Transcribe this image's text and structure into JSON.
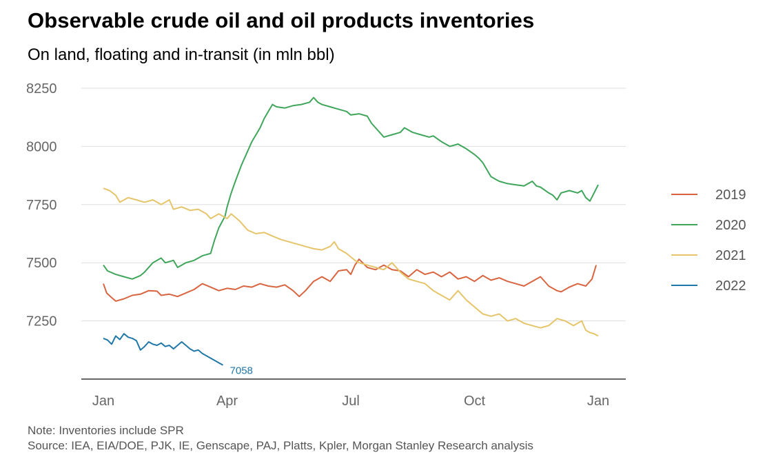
{
  "title": "Observable crude oil and oil products inventories",
  "subtitle": "On land, floating and in-transit (in mln bbl)",
  "notes": {
    "note": "Note: Inventories include SPR",
    "source": "Source: IEA, EIA/DOE, PJK, IE, Genscape, PAJ, Platts, Kpler, Morgan Stanley Research analysis"
  },
  "chart_data": {
    "type": "line",
    "xlabel": "",
    "ylabel": "",
    "x_unit": "month of year (Jan 1 = 0, following Jan 1 = 12)",
    "xlim": [
      0,
      12
    ],
    "ylim": [
      7000,
      8250
    ],
    "x_ticks": [
      {
        "label": "Jan",
        "value": 0
      },
      {
        "label": "Apr",
        "value": 3
      },
      {
        "label": "Jul",
        "value": 6
      },
      {
        "label": "Oct",
        "value": 9
      },
      {
        "label": "Jan",
        "value": 12
      }
    ],
    "y_ticks": [
      7250,
      7500,
      7750,
      8000,
      8250
    ],
    "grid": "horizontal",
    "legend_position": "right",
    "end_label": {
      "series": "2022",
      "text": "7058"
    },
    "series": [
      {
        "name": "2019",
        "color": "#d8643f",
        "points": [
          [
            0,
            7410
          ],
          [
            0.08,
            7370
          ],
          [
            0.2,
            7350
          ],
          [
            0.3,
            7335
          ],
          [
            0.5,
            7345
          ],
          [
            0.7,
            7360
          ],
          [
            0.9,
            7365
          ],
          [
            1.1,
            7380
          ],
          [
            1.3,
            7378
          ],
          [
            1.4,
            7360
          ],
          [
            1.6,
            7365
          ],
          [
            1.8,
            7355
          ],
          [
            2.0,
            7370
          ],
          [
            2.2,
            7385
          ],
          [
            2.4,
            7410
          ],
          [
            2.6,
            7395
          ],
          [
            2.8,
            7380
          ],
          [
            3.0,
            7390
          ],
          [
            3.2,
            7385
          ],
          [
            3.4,
            7400
          ],
          [
            3.6,
            7395
          ],
          [
            3.8,
            7410
          ],
          [
            4.0,
            7400
          ],
          [
            4.2,
            7395
          ],
          [
            4.4,
            7405
          ],
          [
            4.6,
            7380
          ],
          [
            4.75,
            7355
          ],
          [
            4.9,
            7380
          ],
          [
            5.1,
            7420
          ],
          [
            5.3,
            7440
          ],
          [
            5.5,
            7420
          ],
          [
            5.7,
            7465
          ],
          [
            5.9,
            7470
          ],
          [
            6.0,
            7450
          ],
          [
            6.1,
            7490
          ],
          [
            6.2,
            7515
          ],
          [
            6.4,
            7480
          ],
          [
            6.6,
            7470
          ],
          [
            6.8,
            7490
          ],
          [
            7.0,
            7470
          ],
          [
            7.2,
            7465
          ],
          [
            7.4,
            7440
          ],
          [
            7.6,
            7470
          ],
          [
            7.8,
            7450
          ],
          [
            8.0,
            7460
          ],
          [
            8.2,
            7440
          ],
          [
            8.4,
            7460
          ],
          [
            8.6,
            7430
          ],
          [
            8.8,
            7440
          ],
          [
            9.0,
            7420
          ],
          [
            9.2,
            7445
          ],
          [
            9.4,
            7425
          ],
          [
            9.6,
            7435
          ],
          [
            9.8,
            7420
          ],
          [
            10.0,
            7410
          ],
          [
            10.2,
            7400
          ],
          [
            10.4,
            7420
          ],
          [
            10.6,
            7440
          ],
          [
            10.8,
            7400
          ],
          [
            11.0,
            7380
          ],
          [
            11.1,
            7375
          ],
          [
            11.3,
            7395
          ],
          [
            11.5,
            7410
          ],
          [
            11.7,
            7400
          ],
          [
            11.85,
            7430
          ],
          [
            11.95,
            7490
          ]
        ]
      },
      {
        "name": "2020",
        "color": "#3fa55a",
        "points": [
          [
            0,
            7490
          ],
          [
            0.1,
            7465
          ],
          [
            0.3,
            7450
          ],
          [
            0.5,
            7440
          ],
          [
            0.7,
            7430
          ],
          [
            0.9,
            7445
          ],
          [
            1.0,
            7460
          ],
          [
            1.2,
            7500
          ],
          [
            1.4,
            7520
          ],
          [
            1.5,
            7500
          ],
          [
            1.7,
            7510
          ],
          [
            1.8,
            7480
          ],
          [
            2.0,
            7500
          ],
          [
            2.2,
            7510
          ],
          [
            2.4,
            7530
          ],
          [
            2.6,
            7540
          ],
          [
            2.7,
            7600
          ],
          [
            2.8,
            7650
          ],
          [
            2.95,
            7700
          ],
          [
            3.0,
            7740
          ],
          [
            3.1,
            7800
          ],
          [
            3.2,
            7850
          ],
          [
            3.35,
            7920
          ],
          [
            3.5,
            7980
          ],
          [
            3.6,
            8020
          ],
          [
            3.7,
            8050
          ],
          [
            3.8,
            8080
          ],
          [
            3.9,
            8120
          ],
          [
            4.0,
            8150
          ],
          [
            4.1,
            8180
          ],
          [
            4.2,
            8170
          ],
          [
            4.4,
            8165
          ],
          [
            4.6,
            8175
          ],
          [
            4.8,
            8180
          ],
          [
            5.0,
            8190
          ],
          [
            5.1,
            8210
          ],
          [
            5.2,
            8190
          ],
          [
            5.3,
            8180
          ],
          [
            5.5,
            8170
          ],
          [
            5.7,
            8160
          ],
          [
            5.9,
            8150
          ],
          [
            6.0,
            8135
          ],
          [
            6.2,
            8140
          ],
          [
            6.4,
            8130
          ],
          [
            6.5,
            8100
          ],
          [
            6.6,
            8080
          ],
          [
            6.7,
            8060
          ],
          [
            6.8,
            8040
          ],
          [
            7.0,
            8050
          ],
          [
            7.2,
            8060
          ],
          [
            7.3,
            8080
          ],
          [
            7.5,
            8060
          ],
          [
            7.7,
            8050
          ],
          [
            7.9,
            8040
          ],
          [
            8.0,
            8045
          ],
          [
            8.2,
            8020
          ],
          [
            8.4,
            8000
          ],
          [
            8.6,
            8010
          ],
          [
            8.8,
            7990
          ],
          [
            9.0,
            7965
          ],
          [
            9.1,
            7950
          ],
          [
            9.2,
            7930
          ],
          [
            9.3,
            7900
          ],
          [
            9.4,
            7870
          ],
          [
            9.5,
            7860
          ],
          [
            9.6,
            7850
          ],
          [
            9.8,
            7840
          ],
          [
            10.0,
            7835
          ],
          [
            10.2,
            7830
          ],
          [
            10.4,
            7850
          ],
          [
            10.5,
            7830
          ],
          [
            10.6,
            7825
          ],
          [
            10.8,
            7800
          ],
          [
            10.9,
            7790
          ],
          [
            11.0,
            7770
          ],
          [
            11.1,
            7800
          ],
          [
            11.3,
            7810
          ],
          [
            11.5,
            7800
          ],
          [
            11.6,
            7810
          ],
          [
            11.7,
            7780
          ],
          [
            11.8,
            7765
          ],
          [
            11.9,
            7800
          ],
          [
            12.0,
            7835
          ]
        ]
      },
      {
        "name": "2021",
        "color": "#e5c46a",
        "points": [
          [
            0,
            7820
          ],
          [
            0.15,
            7810
          ],
          [
            0.3,
            7790
          ],
          [
            0.4,
            7760
          ],
          [
            0.6,
            7780
          ],
          [
            0.8,
            7770
          ],
          [
            1.0,
            7760
          ],
          [
            1.2,
            7770
          ],
          [
            1.4,
            7750
          ],
          [
            1.6,
            7770
          ],
          [
            1.7,
            7730
          ],
          [
            1.9,
            7740
          ],
          [
            2.1,
            7725
          ],
          [
            2.3,
            7730
          ],
          [
            2.5,
            7710
          ],
          [
            2.6,
            7690
          ],
          [
            2.8,
            7710
          ],
          [
            3.0,
            7690
          ],
          [
            3.1,
            7710
          ],
          [
            3.3,
            7680
          ],
          [
            3.4,
            7660
          ],
          [
            3.5,
            7640
          ],
          [
            3.7,
            7625
          ],
          [
            3.9,
            7630
          ],
          [
            4.1,
            7615
          ],
          [
            4.3,
            7600
          ],
          [
            4.5,
            7590
          ],
          [
            4.7,
            7580
          ],
          [
            4.9,
            7570
          ],
          [
            5.1,
            7560
          ],
          [
            5.3,
            7555
          ],
          [
            5.5,
            7570
          ],
          [
            5.6,
            7590
          ],
          [
            5.7,
            7560
          ],
          [
            5.9,
            7540
          ],
          [
            6.0,
            7525
          ],
          [
            6.1,
            7510
          ],
          [
            6.2,
            7500
          ],
          [
            6.4,
            7490
          ],
          [
            6.6,
            7480
          ],
          [
            6.8,
            7470
          ],
          [
            7.0,
            7500
          ],
          [
            7.2,
            7460
          ],
          [
            7.4,
            7430
          ],
          [
            7.6,
            7420
          ],
          [
            7.8,
            7410
          ],
          [
            8.0,
            7380
          ],
          [
            8.2,
            7360
          ],
          [
            8.4,
            7340
          ],
          [
            8.6,
            7380
          ],
          [
            8.8,
            7340
          ],
          [
            9.0,
            7310
          ],
          [
            9.2,
            7280
          ],
          [
            9.4,
            7270
          ],
          [
            9.6,
            7280
          ],
          [
            9.8,
            7250
          ],
          [
            10.0,
            7260
          ],
          [
            10.2,
            7240
          ],
          [
            10.4,
            7230
          ],
          [
            10.6,
            7220
          ],
          [
            10.8,
            7230
          ],
          [
            11.0,
            7260
          ],
          [
            11.2,
            7250
          ],
          [
            11.4,
            7230
          ],
          [
            11.5,
            7240
          ],
          [
            11.6,
            7250
          ],
          [
            11.7,
            7210
          ],
          [
            11.8,
            7200
          ],
          [
            11.9,
            7195
          ],
          [
            12.0,
            7185
          ]
        ]
      },
      {
        "name": "2022",
        "color": "#1f77a8",
        "points": [
          [
            0,
            7175
          ],
          [
            0.1,
            7168
          ],
          [
            0.2,
            7150
          ],
          [
            0.3,
            7185
          ],
          [
            0.4,
            7170
          ],
          [
            0.5,
            7195
          ],
          [
            0.6,
            7180
          ],
          [
            0.7,
            7175
          ],
          [
            0.8,
            7165
          ],
          [
            0.9,
            7125
          ],
          [
            1.0,
            7140
          ],
          [
            1.1,
            7160
          ],
          [
            1.2,
            7150
          ],
          [
            1.3,
            7145
          ],
          [
            1.4,
            7155
          ],
          [
            1.5,
            7140
          ],
          [
            1.6,
            7145
          ],
          [
            1.7,
            7130
          ],
          [
            1.8,
            7145
          ],
          [
            1.9,
            7160
          ],
          [
            2.0,
            7145
          ],
          [
            2.1,
            7130
          ],
          [
            2.2,
            7120
          ],
          [
            2.3,
            7125
          ],
          [
            2.4,
            7110
          ],
          [
            2.5,
            7100
          ],
          [
            2.6,
            7090
          ],
          [
            2.7,
            7080
          ],
          [
            2.8,
            7070
          ],
          [
            2.9,
            7060
          ]
        ]
      }
    ]
  }
}
